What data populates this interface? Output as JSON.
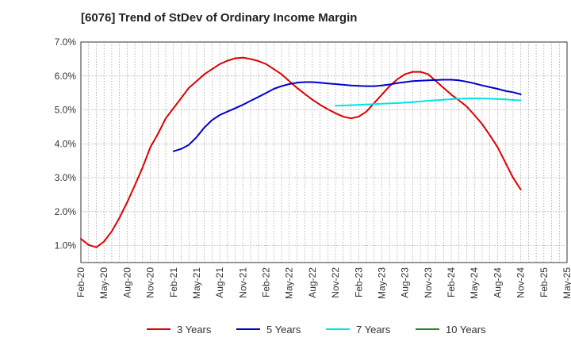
{
  "chart_data": {
    "type": "line",
    "title": "[6076]  Trend of StDev of Ordinary Income Margin",
    "xlabel": "",
    "ylabel": "",
    "x_ticks": [
      "Feb-20",
      "May-20",
      "Aug-20",
      "Nov-20",
      "Feb-21",
      "May-21",
      "Aug-21",
      "Nov-21",
      "Feb-22",
      "May-22",
      "Aug-22",
      "Nov-22",
      "Feb-23",
      "May-23",
      "Aug-23",
      "Nov-23",
      "Feb-24",
      "May-24",
      "Aug-24",
      "Nov-24",
      "Feb-25",
      "May-25"
    ],
    "y_ticks": [
      "1.0%",
      "2.0%",
      "3.0%",
      "4.0%",
      "5.0%",
      "6.0%",
      "7.0%"
    ],
    "ylim": [
      0.5,
      7.0
    ],
    "grid": true,
    "legend_position": "bottom",
    "series": [
      {
        "name": "3 Years",
        "color": "#dd0000",
        "points": [
          [
            "Feb-20",
            1.2
          ],
          [
            "Mar-20",
            1.02
          ],
          [
            "Apr-20",
            0.95
          ],
          [
            "May-20",
            1.12
          ],
          [
            "Jun-20",
            1.42
          ],
          [
            "Jul-20",
            1.82
          ],
          [
            "Aug-20",
            2.28
          ],
          [
            "Sep-20",
            2.78
          ],
          [
            "Oct-20",
            3.3
          ],
          [
            "Nov-20",
            3.9
          ],
          [
            "Dec-20",
            4.3
          ],
          [
            "Jan-21",
            4.75
          ],
          [
            "Feb-21",
            5.05
          ],
          [
            "Mar-21",
            5.35
          ],
          [
            "Apr-21",
            5.65
          ],
          [
            "May-21",
            5.85
          ],
          [
            "Jun-21",
            6.05
          ],
          [
            "Jul-21",
            6.2
          ],
          [
            "Aug-21",
            6.35
          ],
          [
            "Sep-21",
            6.45
          ],
          [
            "Oct-21",
            6.52
          ],
          [
            "Nov-21",
            6.54
          ],
          [
            "Dec-21",
            6.5
          ],
          [
            "Jan-22",
            6.44
          ],
          [
            "Feb-22",
            6.35
          ],
          [
            "Mar-22",
            6.2
          ],
          [
            "Apr-22",
            6.05
          ],
          [
            "May-22",
            5.85
          ],
          [
            "Jun-22",
            5.65
          ],
          [
            "Jul-22",
            5.47
          ],
          [
            "Aug-22",
            5.3
          ],
          [
            "Sep-22",
            5.15
          ],
          [
            "Oct-22",
            5.02
          ],
          [
            "Nov-22",
            4.9
          ],
          [
            "Dec-22",
            4.8
          ],
          [
            "Jan-23",
            4.75
          ],
          [
            "Feb-23",
            4.8
          ],
          [
            "Mar-23",
            4.95
          ],
          [
            "Apr-23",
            5.2
          ],
          [
            "May-23",
            5.45
          ],
          [
            "Jun-23",
            5.7
          ],
          [
            "Jul-23",
            5.9
          ],
          [
            "Aug-23",
            6.05
          ],
          [
            "Sep-23",
            6.12
          ],
          [
            "Oct-23",
            6.12
          ],
          [
            "Nov-23",
            6.05
          ],
          [
            "Dec-23",
            5.85
          ],
          [
            "Jan-24",
            5.65
          ],
          [
            "Feb-24",
            5.45
          ],
          [
            "Mar-24",
            5.28
          ],
          [
            "Apr-24",
            5.1
          ],
          [
            "May-24",
            4.85
          ],
          [
            "Jun-24",
            4.58
          ],
          [
            "Jul-24",
            4.25
          ],
          [
            "Aug-24",
            3.9
          ],
          [
            "Sep-24",
            3.45
          ],
          [
            "Oct-24",
            3.0
          ],
          [
            "Nov-24",
            2.65
          ]
        ]
      },
      {
        "name": "5 Years",
        "color": "#0000cc",
        "points": [
          [
            "Feb-21",
            3.78
          ],
          [
            "Mar-21",
            3.85
          ],
          [
            "Apr-21",
            3.97
          ],
          [
            "May-21",
            4.2
          ],
          [
            "Jun-21",
            4.48
          ],
          [
            "Jul-21",
            4.7
          ],
          [
            "Aug-21",
            4.85
          ],
          [
            "Sep-21",
            4.95
          ],
          [
            "Oct-21",
            5.05
          ],
          [
            "Nov-21",
            5.15
          ],
          [
            "Dec-21",
            5.27
          ],
          [
            "Jan-22",
            5.38
          ],
          [
            "Feb-22",
            5.5
          ],
          [
            "Mar-22",
            5.62
          ],
          [
            "Apr-22",
            5.7
          ],
          [
            "May-22",
            5.76
          ],
          [
            "Jun-22",
            5.8
          ],
          [
            "Jul-22",
            5.82
          ],
          [
            "Aug-22",
            5.82
          ],
          [
            "Sep-22",
            5.8
          ],
          [
            "Oct-22",
            5.78
          ],
          [
            "Nov-22",
            5.76
          ],
          [
            "Dec-22",
            5.74
          ],
          [
            "Jan-23",
            5.72
          ],
          [
            "Feb-23",
            5.71
          ],
          [
            "Mar-23",
            5.7
          ],
          [
            "Apr-23",
            5.7
          ],
          [
            "May-23",
            5.72
          ],
          [
            "Jun-23",
            5.75
          ],
          [
            "Jul-23",
            5.79
          ],
          [
            "Aug-23",
            5.82
          ],
          [
            "Sep-23",
            5.85
          ],
          [
            "Oct-23",
            5.86
          ],
          [
            "Nov-23",
            5.87
          ],
          [
            "Dec-23",
            5.88
          ],
          [
            "Jan-24",
            5.89
          ],
          [
            "Feb-24",
            5.89
          ],
          [
            "Mar-24",
            5.87
          ],
          [
            "Apr-24",
            5.83
          ],
          [
            "May-24",
            5.78
          ],
          [
            "Jun-24",
            5.72
          ],
          [
            "Jul-24",
            5.67
          ],
          [
            "Aug-24",
            5.62
          ],
          [
            "Sep-24",
            5.56
          ],
          [
            "Oct-24",
            5.52
          ],
          [
            "Nov-24",
            5.46
          ]
        ]
      },
      {
        "name": "7 Years",
        "color": "#00e5e5",
        "points": [
          [
            "Nov-22",
            5.12
          ],
          [
            "Jan-23",
            5.14
          ],
          [
            "Mar-23",
            5.16
          ],
          [
            "May-23",
            5.18
          ],
          [
            "Jul-23",
            5.2
          ],
          [
            "Sep-23",
            5.23
          ],
          [
            "Nov-23",
            5.27
          ],
          [
            "Jan-24",
            5.3
          ],
          [
            "Mar-24",
            5.33
          ],
          [
            "May-24",
            5.34
          ],
          [
            "Jul-24",
            5.33
          ],
          [
            "Sep-24",
            5.31
          ],
          [
            "Nov-24",
            5.28
          ]
        ]
      },
      {
        "name": "10 Years",
        "color": "#228B22",
        "points": []
      }
    ]
  }
}
